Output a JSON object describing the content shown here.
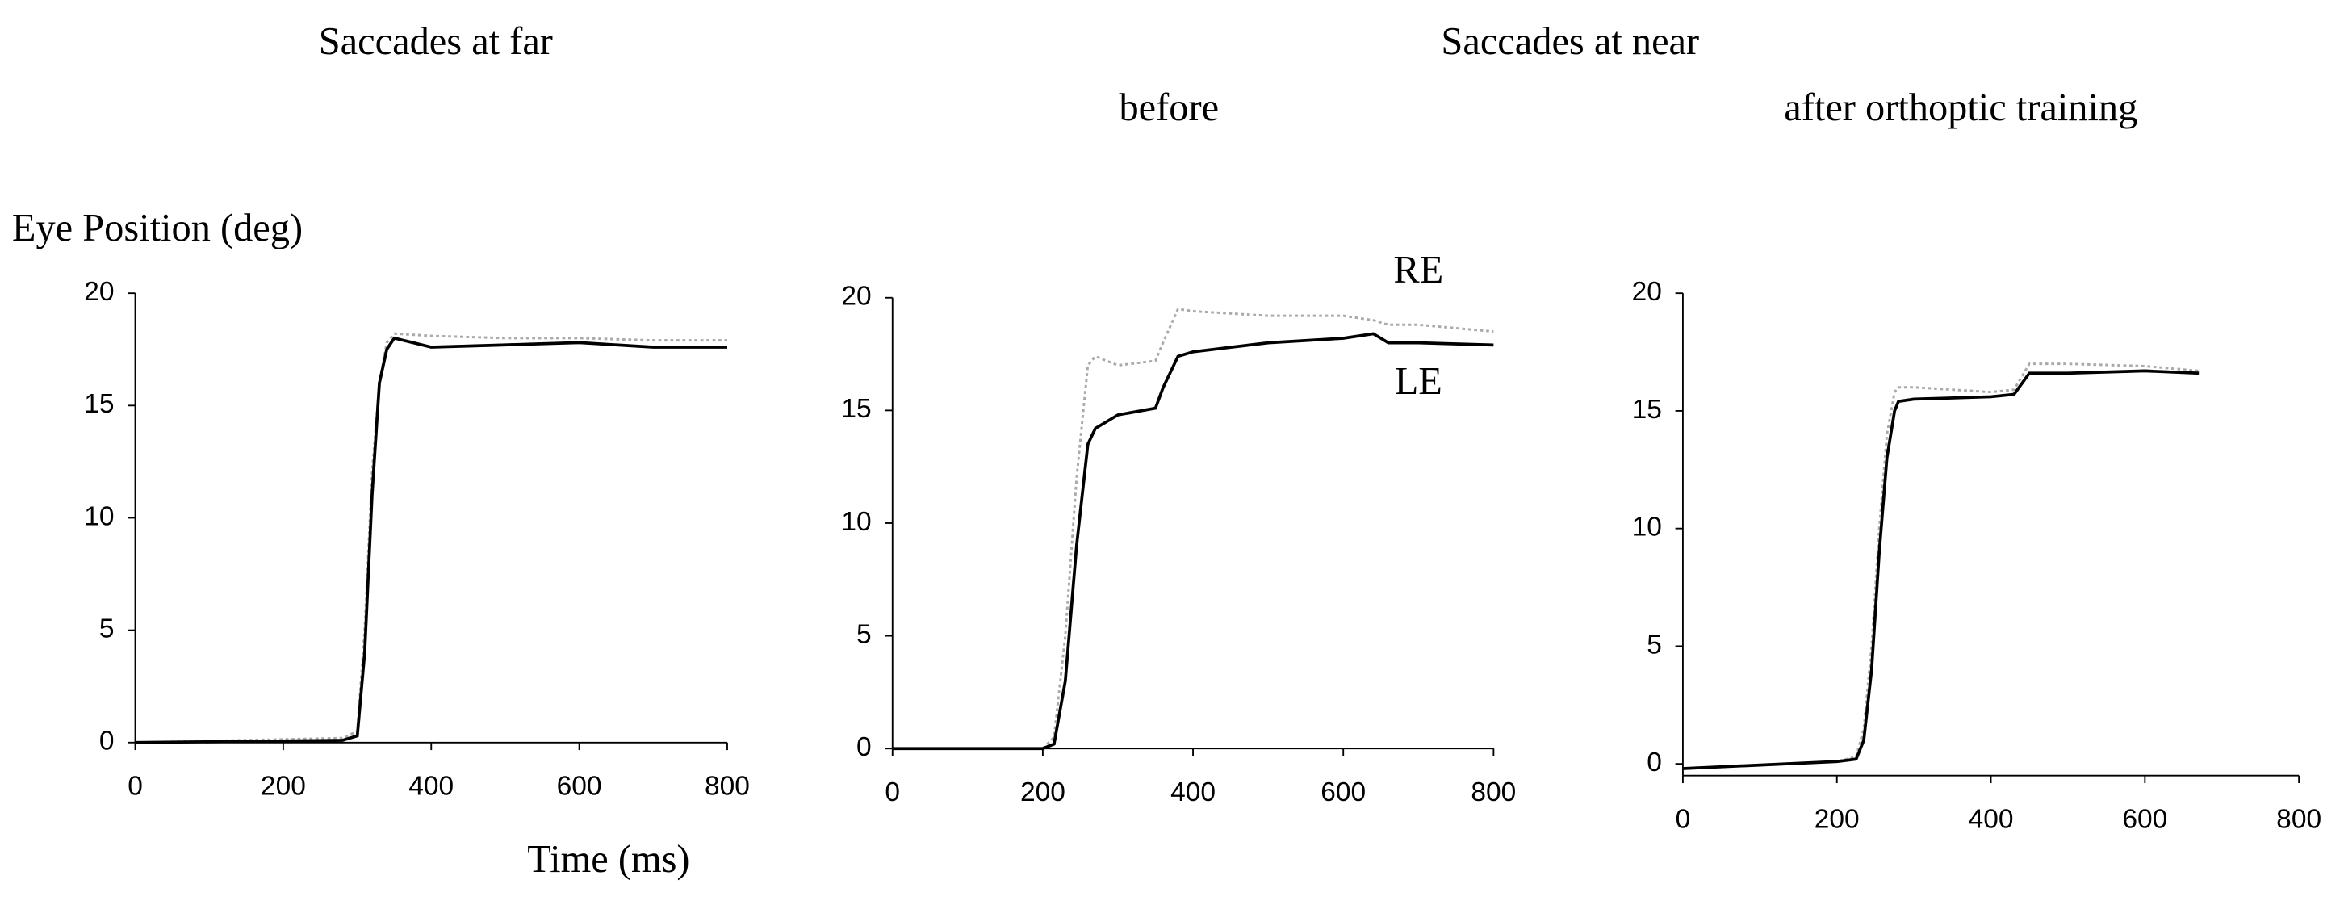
{
  "heading": "Saccades at near",
  "chart_data": [
    {
      "type": "line",
      "title": "Saccades at far",
      "y_label": "Eye Position (deg)",
      "x_label": "Time (ms)",
      "x": [
        0,
        280,
        300,
        310,
        320,
        330,
        340,
        350,
        400,
        500,
        600,
        700,
        800
      ],
      "series": [
        {
          "color": "#aaaaaa",
          "style": "dotted",
          "values": [
            0,
            0.2,
            0.5,
            5,
            12,
            16,
            17.8,
            18.2,
            18.1,
            18,
            18,
            17.9,
            17.9
          ]
        },
        {
          "color": "#000000",
          "style": "solid",
          "values": [
            0,
            0.1,
            0.3,
            4,
            11,
            16,
            17.5,
            18,
            17.6,
            17.7,
            17.8,
            17.6,
            17.6
          ]
        }
      ],
      "xlim": [
        0,
        800
      ],
      "xticks": [
        0,
        200,
        400,
        600,
        800
      ],
      "ylim": [
        0,
        20
      ],
      "yticks": [
        0,
        5,
        10,
        15,
        20
      ]
    },
    {
      "type": "line",
      "subtitle": "before",
      "x": [
        0,
        200,
        215,
        230,
        245,
        260,
        270,
        300,
        350,
        360,
        380,
        400,
        500,
        600,
        640,
        660,
        700,
        800
      ],
      "series": [
        {
          "name": "RE",
          "color": "#aaaaaa",
          "style": "dotted",
          "values": [
            0,
            0,
            0.5,
            5,
            12,
            17,
            17.4,
            17,
            17.2,
            18,
            19.5,
            19.4,
            19.2,
            19.2,
            19,
            18.8,
            18.8,
            18.5
          ]
        },
        {
          "name": "LE",
          "color": "#000000",
          "style": "solid",
          "values": [
            0,
            0,
            0.2,
            3,
            9,
            13.5,
            14.2,
            14.8,
            15.1,
            16,
            17.4,
            17.6,
            18,
            18.2,
            18.4,
            18,
            18,
            17.9
          ]
        }
      ],
      "xlim": [
        0,
        800
      ],
      "xticks": [
        0,
        200,
        400,
        600,
        800
      ],
      "ylim": [
        0,
        20
      ],
      "yticks": [
        0,
        5,
        10,
        15,
        20
      ]
    },
    {
      "type": "line",
      "subtitle": "after orthoptic training",
      "x": [
        0,
        200,
        225,
        235,
        245,
        255,
        265,
        275,
        280,
        300,
        400,
        430,
        450,
        500,
        600,
        670
      ],
      "series": [
        {
          "color": "#aaaaaa",
          "style": "dotted",
          "values": [
            -0.2,
            0.1,
            0.3,
            1.5,
            5,
            10,
            14,
            15.8,
            16,
            16,
            15.8,
            15.9,
            17,
            17,
            16.9,
            16.7
          ]
        },
        {
          "color": "#000000",
          "style": "solid",
          "values": [
            -0.2,
            0.1,
            0.2,
            1,
            4,
            9,
            13,
            15,
            15.4,
            15.5,
            15.6,
            15.7,
            16.6,
            16.6,
            16.7,
            16.6
          ]
        }
      ],
      "xlim": [
        0,
        800
      ],
      "xticks": [
        0,
        200,
        400,
        600,
        800
      ],
      "ylim": [
        -0.5,
        20
      ],
      "yticks": [
        0,
        5,
        10,
        15,
        20
      ]
    }
  ]
}
